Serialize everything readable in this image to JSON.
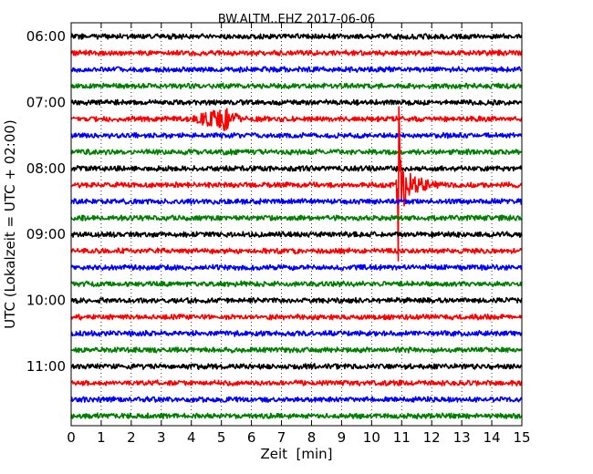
{
  "chart_data": {
    "type": "line",
    "title": "BW.ALTM..EHZ 2017-06-06",
    "xlabel": "Zeit  [min]",
    "ylabel": "UTC (Lokalzeit = UTC + 02:00)",
    "xlim": [
      0,
      15
    ],
    "x_ticks": [
      0,
      1,
      2,
      3,
      4,
      5,
      6,
      7,
      8,
      9,
      10,
      11,
      12,
      13,
      14,
      15
    ],
    "x_tick_labels": [
      "0",
      "1",
      "2",
      "3",
      "4",
      "5",
      "6",
      "7",
      "8",
      "9",
      "10",
      "11",
      "12",
      "13",
      "14",
      "15"
    ],
    "y_tick_labels": [
      "06:00",
      "07:00",
      "08:00",
      "09:00",
      "10:00",
      "11:00"
    ],
    "grid": "vertical-dotted",
    "trace_interval_minutes": 15,
    "traces": [
      {
        "start": "06:00",
        "color": "#000000"
      },
      {
        "start": "06:15",
        "color": "#ff0000"
      },
      {
        "start": "06:30",
        "color": "#0000ff"
      },
      {
        "start": "06:45",
        "color": "#008000"
      },
      {
        "start": "07:00",
        "color": "#000000"
      },
      {
        "start": "07:15",
        "color": "#ff0000"
      },
      {
        "start": "07:30",
        "color": "#0000ff"
      },
      {
        "start": "07:45",
        "color": "#008000"
      },
      {
        "start": "08:00",
        "color": "#000000"
      },
      {
        "start": "08:15",
        "color": "#ff0000"
      },
      {
        "start": "08:30",
        "color": "#0000ff"
      },
      {
        "start": "08:45",
        "color": "#008000"
      },
      {
        "start": "09:00",
        "color": "#000000"
      },
      {
        "start": "09:15",
        "color": "#ff0000"
      },
      {
        "start": "09:30",
        "color": "#0000ff"
      },
      {
        "start": "09:45",
        "color": "#008000"
      },
      {
        "start": "10:00",
        "color": "#000000"
      },
      {
        "start": "10:15",
        "color": "#ff0000"
      },
      {
        "start": "10:30",
        "color": "#0000ff"
      },
      {
        "start": "10:45",
        "color": "#008000"
      },
      {
        "start": "11:00",
        "color": "#000000"
      },
      {
        "start": "11:15",
        "color": "#ff0000"
      },
      {
        "start": "11:30",
        "color": "#0000ff"
      },
      {
        "start": "11:45",
        "color": "#008000"
      }
    ],
    "events": [
      {
        "trace": "07:15",
        "x_start": 3.9,
        "x_end": 5.9,
        "peak_x": 5.2,
        "amplitude": 1.0
      },
      {
        "trace": "08:15",
        "x_start": 10.8,
        "x_end": 12.3,
        "peak_x": 10.95,
        "amplitude": 2.2
      },
      {
        "trace": "08:15",
        "x_start": 10.82,
        "x_end": 10.98,
        "peak_x": 10.9,
        "amplitude": 11.0
      }
    ]
  }
}
